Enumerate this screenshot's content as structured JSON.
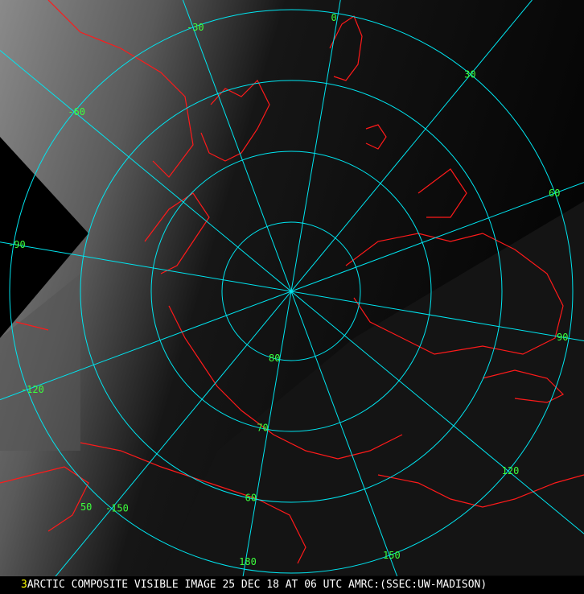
{
  "map": {
    "projection": "polar stereographic (north pole)",
    "colors": {
      "grid": "#00e5f0",
      "coastline": "#ff1a1a",
      "labels": "#3cff3c",
      "caption": "#ffffff",
      "frame_number": "#ffff00"
    },
    "latitude_labels": [
      "80",
      "70",
      "60",
      "50"
    ],
    "longitude_labels": [
      {
        "text": "0",
        "lon": 0
      },
      {
        "text": "30",
        "lon": 30
      },
      {
        "text": "60",
        "lon": 60
      },
      {
        "text": "90",
        "lon": 90
      },
      {
        "text": "120",
        "lon": 120
      },
      {
        "text": "150",
        "lon": 150
      },
      {
        "text": "180",
        "lon": 180
      },
      {
        "text": "-150",
        "lon": -150
      },
      {
        "text": "-120",
        "lon": -120
      },
      {
        "text": "-90",
        "lon": -90
      },
      {
        "text": "-60",
        "lon": -60
      },
      {
        "text": "-30",
        "lon": -30
      }
    ]
  },
  "caption": {
    "frame_number": "3",
    "text": "ARCTIC COMPOSITE VISIBLE IMAGE 25 DEC 18 AT 06 UTC AMRC:(SSEC:UW-MADISON)"
  }
}
